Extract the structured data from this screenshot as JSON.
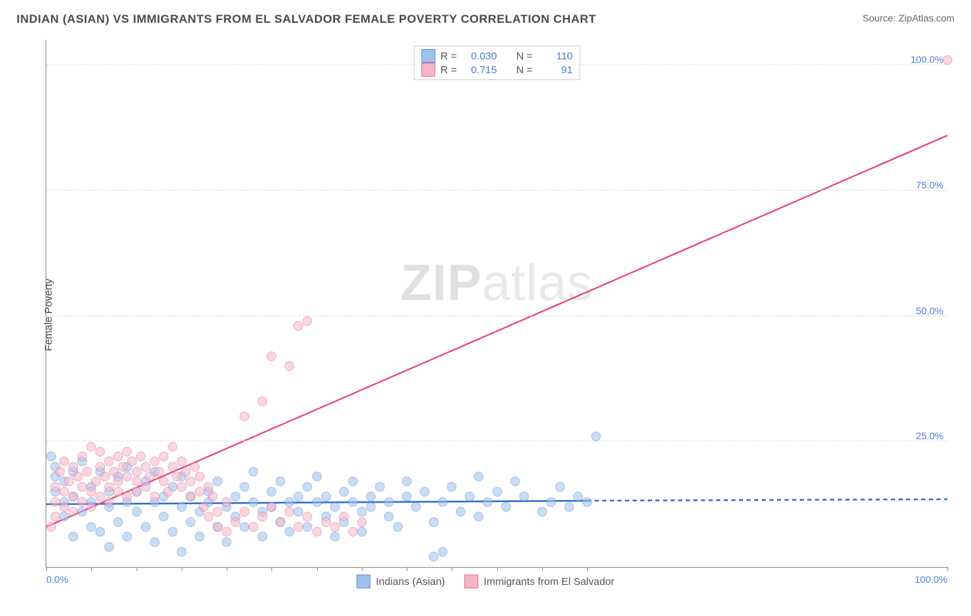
{
  "title": "INDIAN (ASIAN) VS IMMIGRANTS FROM EL SALVADOR FEMALE POVERTY CORRELATION CHART",
  "source_label": "Source: ",
  "source_name": "ZipAtlas.com",
  "ylabel": "Female Poverty",
  "watermark_a": "ZIP",
  "watermark_b": "atlas",
  "chart": {
    "type": "scatter",
    "xlim": [
      0,
      100
    ],
    "ylim": [
      0,
      105
    ],
    "x_ticks": [
      0,
      5,
      10,
      15,
      20,
      25,
      30,
      35,
      40,
      45,
      50,
      55,
      60,
      100
    ],
    "x_tick_labels": {
      "0": "0.0%",
      "100": "100.0%"
    },
    "y_gridlines": [
      25,
      50,
      75,
      100
    ],
    "y_tick_labels": {
      "25": "25.0%",
      "50": "50.0%",
      "75": "75.0%",
      "100": "100.0%"
    },
    "grid_color": "#dddddd",
    "axis_color": "#888888",
    "background": "#ffffff",
    "marker_radius": 7,
    "marker_opacity": 0.55,
    "series": [
      {
        "id": "indians",
        "label": "Indians (Asian)",
        "fill": "#9fc1ec",
        "stroke": "#5a8fd6",
        "r_value": "0.030",
        "n_value": "110",
        "trend": {
          "x1": 0,
          "y1": 12.5,
          "x2": 60,
          "y2": 13.2,
          "color": "#2f6fd0",
          "width": 2.5,
          "dash_after_x": 60,
          "x2_ext": 100,
          "y2_ext": 13.5
        },
        "points": [
          [
            1,
            18
          ],
          [
            1,
            15
          ],
          [
            1,
            20
          ],
          [
            2,
            13
          ],
          [
            2,
            17
          ],
          [
            2,
            10
          ],
          [
            3,
            19
          ],
          [
            3,
            6
          ],
          [
            3,
            14
          ],
          [
            4,
            11
          ],
          [
            4,
            21
          ],
          [
            5,
            8
          ],
          [
            5,
            16
          ],
          [
            5,
            13
          ],
          [
            6,
            19
          ],
          [
            6,
            7
          ],
          [
            7,
            12
          ],
          [
            7,
            15
          ],
          [
            7,
            4
          ],
          [
            8,
            18
          ],
          [
            8,
            9
          ],
          [
            9,
            13
          ],
          [
            9,
            20
          ],
          [
            9,
            6
          ],
          [
            10,
            15
          ],
          [
            10,
            11
          ],
          [
            11,
            8
          ],
          [
            11,
            17
          ],
          [
            12,
            13
          ],
          [
            12,
            5
          ],
          [
            12,
            19
          ],
          [
            13,
            10
          ],
          [
            13,
            14
          ],
          [
            14,
            7
          ],
          [
            14,
            16
          ],
          [
            15,
            12
          ],
          [
            15,
            3
          ],
          [
            15,
            18
          ],
          [
            16,
            9
          ],
          [
            16,
            14
          ],
          [
            17,
            11
          ],
          [
            17,
            6
          ],
          [
            18,
            15
          ],
          [
            18,
            13
          ],
          [
            19,
            8
          ],
          [
            19,
            17
          ],
          [
            20,
            12
          ],
          [
            20,
            5
          ],
          [
            21,
            14
          ],
          [
            21,
            10
          ],
          [
            22,
            16
          ],
          [
            22,
            8
          ],
          [
            23,
            13
          ],
          [
            23,
            19
          ],
          [
            24,
            11
          ],
          [
            24,
            6
          ],
          [
            25,
            15
          ],
          [
            25,
            12
          ],
          [
            26,
            9
          ],
          [
            26,
            17
          ],
          [
            27,
            13
          ],
          [
            27,
            7
          ],
          [
            28,
            14
          ],
          [
            28,
            11
          ],
          [
            29,
            16
          ],
          [
            29,
            8
          ],
          [
            30,
            13
          ],
          [
            30,
            18
          ],
          [
            31,
            10
          ],
          [
            31,
            14
          ],
          [
            32,
            12
          ],
          [
            32,
            6
          ],
          [
            33,
            15
          ],
          [
            33,
            9
          ],
          [
            34,
            13
          ],
          [
            34,
            17
          ],
          [
            35,
            11
          ],
          [
            35,
            7
          ],
          [
            36,
            14
          ],
          [
            36,
            12
          ],
          [
            37,
            16
          ],
          [
            38,
            10
          ],
          [
            38,
            13
          ],
          [
            39,
            8
          ],
          [
            40,
            14
          ],
          [
            40,
            17
          ],
          [
            41,
            12
          ],
          [
            42,
            15
          ],
          [
            43,
            9
          ],
          [
            43,
            2
          ],
          [
            44,
            13
          ],
          [
            44,
            3
          ],
          [
            45,
            16
          ],
          [
            46,
            11
          ],
          [
            47,
            14
          ],
          [
            48,
            18
          ],
          [
            48,
            10
          ],
          [
            49,
            13
          ],
          [
            50,
            15
          ],
          [
            51,
            12
          ],
          [
            52,
            17
          ],
          [
            53,
            14
          ],
          [
            55,
            11
          ],
          [
            56,
            13
          ],
          [
            57,
            16
          ],
          [
            58,
            12
          ],
          [
            59,
            14
          ],
          [
            60,
            13
          ],
          [
            61,
            26
          ],
          [
            0.5,
            22
          ]
        ]
      },
      {
        "id": "el_salvador",
        "label": "Immigrants from El Salvador",
        "fill": "#f4b8c8",
        "stroke": "#e76b94",
        "r_value": "0.715",
        "n_value": "91",
        "trend": {
          "x1": 0,
          "y1": 8,
          "x2": 100,
          "y2": 86,
          "color": "#e7447a",
          "width": 2.2
        },
        "points": [
          [
            1,
            10
          ],
          [
            1,
            13
          ],
          [
            1,
            16
          ],
          [
            1.5,
            19
          ],
          [
            2,
            12
          ],
          [
            2,
            15
          ],
          [
            2,
            21
          ],
          [
            2.5,
            17
          ],
          [
            3,
            14
          ],
          [
            3,
            20
          ],
          [
            3,
            11
          ],
          [
            3.5,
            18
          ],
          [
            4,
            16
          ],
          [
            4,
            13
          ],
          [
            4,
            22
          ],
          [
            4.5,
            19
          ],
          [
            5,
            15
          ],
          [
            5,
            12
          ],
          [
            5,
            24
          ],
          [
            5.5,
            17
          ],
          [
            6,
            20
          ],
          [
            6,
            14
          ],
          [
            6,
            23
          ],
          [
            6.5,
            18
          ],
          [
            7,
            16
          ],
          [
            7,
            21
          ],
          [
            7,
            13
          ],
          [
            7.5,
            19
          ],
          [
            8,
            17
          ],
          [
            8,
            22
          ],
          [
            8,
            15
          ],
          [
            8.5,
            20
          ],
          [
            9,
            18
          ],
          [
            9,
            14
          ],
          [
            9,
            23
          ],
          [
            9.5,
            21
          ],
          [
            10,
            17
          ],
          [
            10,
            19
          ],
          [
            10,
            15
          ],
          [
            10.5,
            22
          ],
          [
            11,
            20
          ],
          [
            11,
            16
          ],
          [
            11.5,
            18
          ],
          [
            12,
            21
          ],
          [
            12,
            14
          ],
          [
            12.5,
            19
          ],
          [
            13,
            17
          ],
          [
            13,
            22
          ],
          [
            13.5,
            15
          ],
          [
            14,
            20
          ],
          [
            14,
            24
          ],
          [
            14.5,
            18
          ],
          [
            15,
            16
          ],
          [
            15,
            21
          ],
          [
            15.5,
            19
          ],
          [
            16,
            17
          ],
          [
            16,
            14
          ],
          [
            16.5,
            20
          ],
          [
            17,
            15
          ],
          [
            17,
            18
          ],
          [
            17.5,
            12
          ],
          [
            18,
            16
          ],
          [
            18,
            10
          ],
          [
            18.5,
            14
          ],
          [
            19,
            11
          ],
          [
            19,
            8
          ],
          [
            20,
            13
          ],
          [
            20,
            7
          ],
          [
            21,
            9
          ],
          [
            22,
            11
          ],
          [
            22,
            30
          ],
          [
            23,
            8
          ],
          [
            24,
            33
          ],
          [
            24,
            10
          ],
          [
            25,
            12
          ],
          [
            25,
            42
          ],
          [
            26,
            9
          ],
          [
            27,
            11
          ],
          [
            27,
            40
          ],
          [
            28,
            8
          ],
          [
            28,
            48
          ],
          [
            29,
            10
          ],
          [
            29,
            49
          ],
          [
            30,
            7
          ],
          [
            31,
            9
          ],
          [
            32,
            8
          ],
          [
            33,
            10
          ],
          [
            34,
            7
          ],
          [
            35,
            9
          ],
          [
            100,
            101
          ],
          [
            0.5,
            8
          ]
        ]
      }
    ]
  },
  "legend_top": {
    "r_label": "R =",
    "n_label": "N ="
  }
}
